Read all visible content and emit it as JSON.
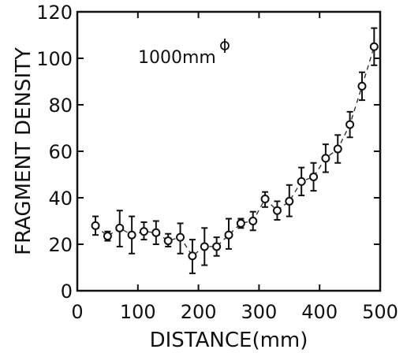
{
  "chart_data": {
    "type": "scatter",
    "title": "",
    "xlabel": "DISTANCE(mm)",
    "ylabel": "FRAGMENT DENSITY",
    "annotation": "1000mm",
    "xlim": [
      0,
      500
    ],
    "ylim": [
      0,
      120
    ],
    "xticks": [
      0,
      100,
      200,
      300,
      400,
      500
    ],
    "yticks": [
      0,
      20,
      40,
      60,
      80,
      100,
      120
    ],
    "grid": false,
    "legend": "none",
    "series": [
      {
        "x": [
          30,
          50,
          70,
          90,
          110,
          130,
          150,
          170,
          190,
          210,
          230,
          250,
          270,
          290,
          310,
          330,
          350,
          370,
          390,
          410,
          430,
          450,
          470,
          490
        ],
        "y": [
          28,
          23.5,
          27,
          24,
          25.5,
          25,
          21.5,
          23,
          15,
          19,
          19,
          24,
          29,
          30,
          39.5,
          34.5,
          38.5,
          47,
          49,
          57,
          61,
          71.5,
          88,
          105
        ],
        "yerr_low": [
          24,
          21.5,
          19,
          16,
          22,
          20,
          19,
          16,
          7.5,
          11,
          15,
          18,
          27,
          26,
          36,
          30.5,
          32,
          41,
          43,
          51,
          55,
          66,
          82,
          97
        ],
        "yerr_high": [
          32,
          25.5,
          34.5,
          32,
          29.5,
          30,
          24.5,
          29,
          22,
          27,
          23,
          31,
          31,
          34,
          42.5,
          38.5,
          45.5,
          53,
          55,
          63,
          67,
          77,
          94,
          113
        ]
      }
    ]
  }
}
